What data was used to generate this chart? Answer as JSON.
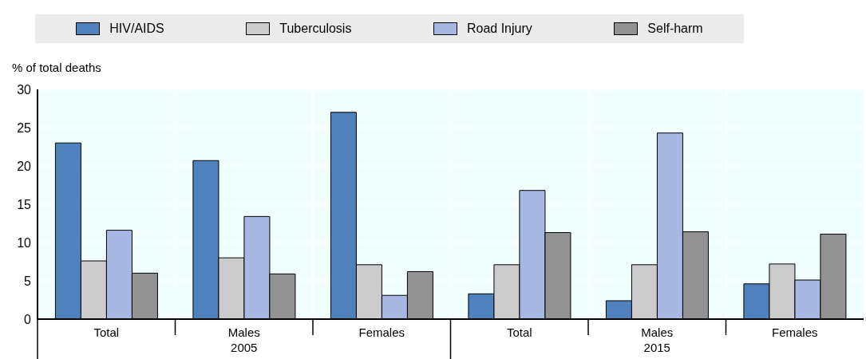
{
  "chart_data": {
    "type": "bar",
    "ylabel": "% of  total deaths",
    "categories": [
      "Total",
      "Males",
      "Females",
      "Total",
      "Males",
      "Females"
    ],
    "annotations": [
      "2005",
      "2015"
    ],
    "series": [
      {
        "name": "HIV/AIDS",
        "color": "#4f81bd",
        "values": [
          23,
          20.7,
          27,
          3.3,
          2.4,
          4.6
        ]
      },
      {
        "name": "Tuberculosis",
        "color": "#cccccc",
        "values": [
          7.6,
          8,
          7.1,
          7.1,
          7.1,
          7.2
        ]
      },
      {
        "name": "Road Injury",
        "color": "#a7b9e3",
        "values": [
          11.6,
          13.4,
          3.1,
          16.8,
          24.3,
          5.1
        ]
      },
      {
        "name": "Self-harm",
        "color": "#929292",
        "values": [
          6,
          5.9,
          6.2,
          11.3,
          11.4,
          11.1
        ]
      }
    ],
    "ylim": [
      0,
      30
    ],
    "yticks": [
      0,
      5,
      10,
      15,
      20,
      25,
      30
    ],
    "grid": true,
    "legend": "top"
  }
}
